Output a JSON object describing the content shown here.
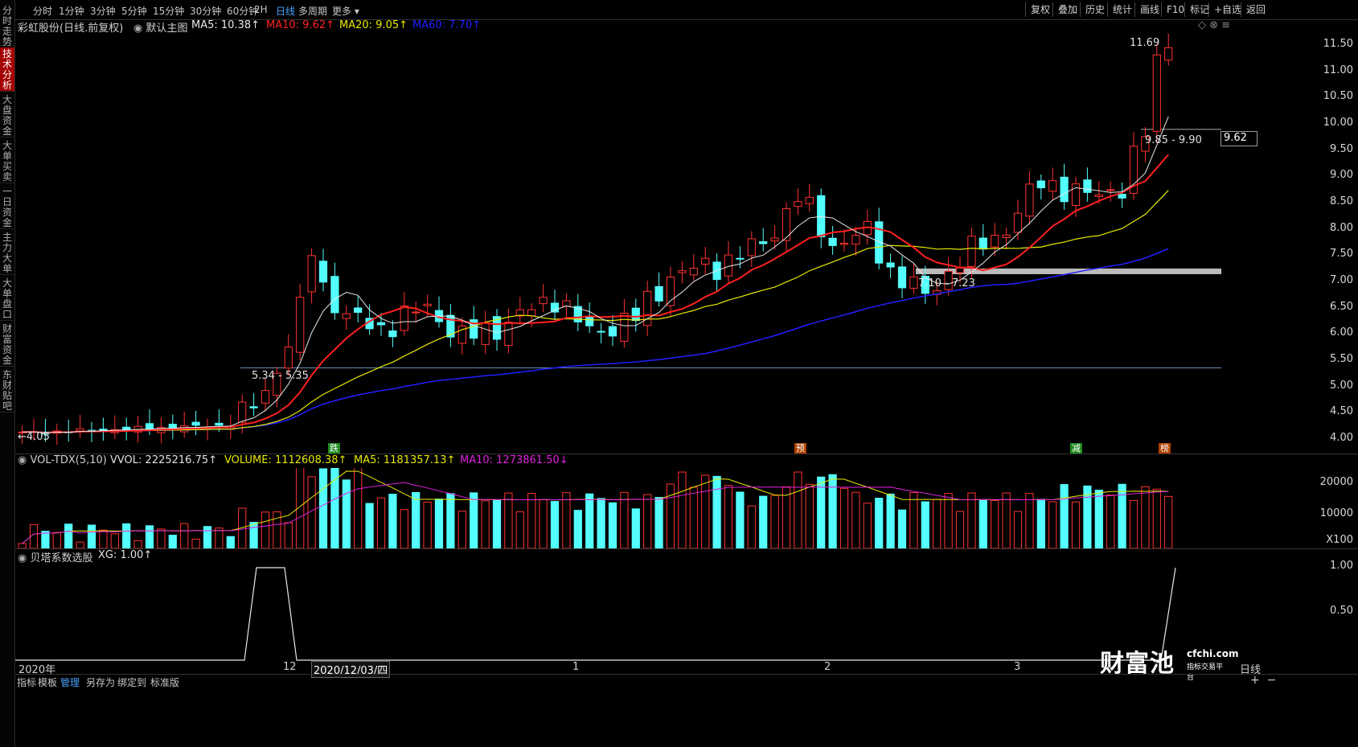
{
  "side_tabs": [
    "分时走势",
    "技术分析",
    "大盘资金",
    "大单买卖",
    "一日资金",
    "主力大单",
    "大单盘口",
    "财富资金",
    "东财贴吧"
  ],
  "toolbar": {
    "periods": [
      "分时",
      "1分钟",
      "3分钟",
      "5分钟",
      "15分钟",
      "30分钟",
      "60分钟",
      "2H",
      "日线",
      "多周期",
      "更多"
    ],
    "selected_period": "日线",
    "right_buttons": [
      "复权",
      "叠加",
      "历史",
      "统计",
      "画线",
      "F10",
      "标记",
      "+自选",
      "返回"
    ]
  },
  "main_header": {
    "name": "彩虹股份(日线.前复权)",
    "template": "默认主图",
    "ma5": "MA5: 10.38↑",
    "ma10": "MA10: 9.62↑",
    "ma20": "MA20: 9.05↑",
    "ma60": "MA60: 7.70↑"
  },
  "price_axis": [
    "11.50",
    "11.00",
    "10.50",
    "10.00",
    "9.50",
    "9.00",
    "8.50",
    "8.00",
    "7.50",
    "7.00",
    "6.50",
    "6.00",
    "5.50",
    "5.00",
    "4.50",
    "4.00"
  ],
  "price_tag": "9.62",
  "annotations": {
    "high": "11.69",
    "low": "←4.05",
    "zone1": "9.85 - 9.90",
    "zone2": "7.10 - 7.23",
    "zone3": "5.34 - 5.35"
  },
  "signals": [
    {
      "text": "跌",
      "color": "#1e8a1e"
    },
    {
      "text": "预",
      "color": "#b04000"
    },
    {
      "text": "减",
      "color": "#1e8a1e"
    },
    {
      "text": "榜",
      "color": "#b04000"
    }
  ],
  "vol_header": {
    "name": "VOL-TDX(5,10)",
    "vvol": "VVOL: 2225216.75↑",
    "volume": "VOLUME: 1112608.38↑",
    "ma5": "MA5: 1181357.13↑",
    "ma10": "MA10: 1273861.50↓"
  },
  "vol_axis": [
    "20000",
    "10000",
    "X100"
  ],
  "ind_header": {
    "name": "贝塔系数选股",
    "xg": "XG: 1.00↑"
  },
  "ind_axis": [
    "1.00",
    "0.50"
  ],
  "dates": [
    "2020年",
    "12",
    "2020/12/03/四",
    "1",
    "2",
    "3",
    "日线"
  ],
  "bottom_tabs": [
    "指标",
    "模板",
    "管理",
    "另存为",
    "绑定到",
    "标准版"
  ],
  "bottom_tabs_selected": "管理",
  "watermark": {
    "brand": "财富池",
    "site": "cfchi.com",
    "slogan": "指标交易平台"
  },
  "colors": {
    "up": "#ff3232",
    "down": "#54ffff",
    "ma5": "#e8e8e8",
    "ma10": "#ff2020",
    "ma20": "#e8e800",
    "ma60": "#2020ff",
    "accent": "#4aa3ff"
  }
}
